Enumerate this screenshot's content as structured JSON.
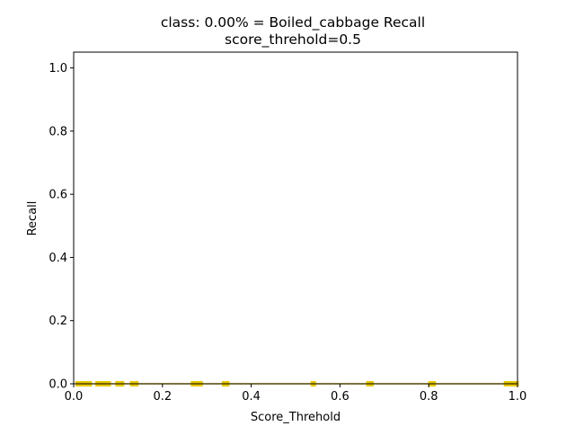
{
  "chart_data": {
    "type": "line",
    "title": "class: 0.00% = Boiled_cabbage Recall",
    "subtitle": "score_threhold=0.5",
    "xlabel": "Score_Threhold",
    "ylabel": "Recall",
    "xlim": [
      0.0,
      1.0
    ],
    "ylim": [
      0.0,
      1.05
    ],
    "xticks": [
      "0.0",
      "0.2",
      "0.4",
      "0.6",
      "0.8",
      "1.0"
    ],
    "yticks": [
      "0.0",
      "0.2",
      "0.4",
      "0.6",
      "0.8",
      "1.0"
    ],
    "grid": false,
    "series": [
      {
        "color": "#e8c800",
        "line_color": "#e8c800",
        "x": [
          0.01,
          0.018,
          0.028,
          0.035,
          0.055,
          0.062,
          0.07,
          0.078,
          0.1,
          0.108,
          0.133,
          0.14,
          0.27,
          0.278,
          0.285,
          0.34,
          0.345,
          0.54,
          0.665,
          0.67,
          0.805,
          0.81,
          0.975,
          0.982,
          0.99,
          0.997
        ],
        "y": [
          0,
          0,
          0,
          0,
          0,
          0,
          0,
          0,
          0,
          0,
          0,
          0,
          0,
          0,
          0,
          0,
          0,
          0,
          0,
          0,
          0,
          0,
          0,
          0,
          0,
          0
        ]
      }
    ]
  }
}
